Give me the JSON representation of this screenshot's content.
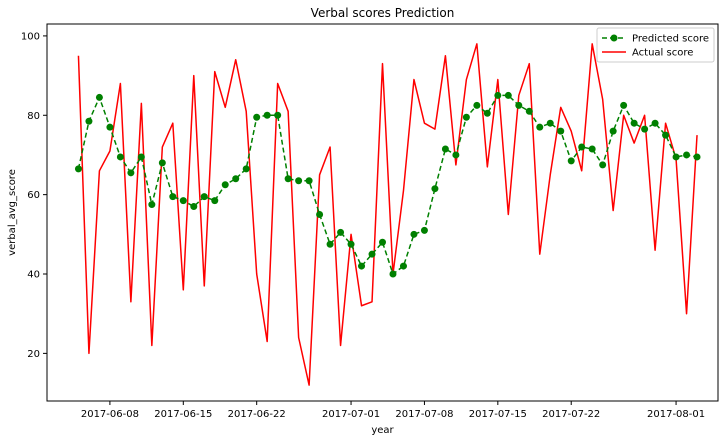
{
  "chart_data": {
    "type": "line",
    "title": "Verbal scores Prediction",
    "xlabel": "year",
    "ylabel": "verbal_avg_score",
    "x_start": "2017-06-05",
    "x": [
      "2017-06-05",
      "2017-06-06",
      "2017-06-07",
      "2017-06-08",
      "2017-06-09",
      "2017-06-10",
      "2017-06-11",
      "2017-06-12",
      "2017-06-13",
      "2017-06-14",
      "2017-06-15",
      "2017-06-16",
      "2017-06-17",
      "2017-06-18",
      "2017-06-19",
      "2017-06-20",
      "2017-06-21",
      "2017-06-22",
      "2017-06-23",
      "2017-06-24",
      "2017-06-25",
      "2017-06-26",
      "2017-06-27",
      "2017-06-28",
      "2017-06-29",
      "2017-06-30",
      "2017-07-01",
      "2017-07-02",
      "2017-07-03",
      "2017-07-04",
      "2017-07-05",
      "2017-07-06",
      "2017-07-07",
      "2017-07-08",
      "2017-07-09",
      "2017-07-10",
      "2017-07-11",
      "2017-07-12",
      "2017-07-13",
      "2017-07-14",
      "2017-07-15",
      "2017-07-16",
      "2017-07-17",
      "2017-07-18",
      "2017-07-19",
      "2017-07-20",
      "2017-07-21",
      "2017-07-22",
      "2017-07-23",
      "2017-07-24",
      "2017-07-25",
      "2017-07-26",
      "2017-07-27",
      "2017-07-28",
      "2017-07-29",
      "2017-07-30",
      "2017-07-31",
      "2017-08-01",
      "2017-08-02",
      "2017-08-03"
    ],
    "x_ticks": [
      "2017-06-08",
      "2017-06-15",
      "2017-06-22",
      "2017-07-01",
      "2017-07-08",
      "2017-07-15",
      "2017-07-22",
      "2017-08-01"
    ],
    "y_ticks": [
      20,
      40,
      60,
      80,
      100
    ],
    "xlim": [
      "2017-06-02",
      "2017-08-05"
    ],
    "ylim": [
      8,
      103
    ],
    "grid": false,
    "legend_position": "top-right",
    "series": [
      {
        "name": "Predicted score",
        "style": "dashed-with-markers",
        "color": "#008000",
        "values": [
          66.5,
          78.5,
          84.5,
          77,
          69.5,
          65.5,
          69.5,
          57.5,
          68,
          59.5,
          58.5,
          57,
          59.5,
          58.5,
          62.5,
          64,
          66.5,
          79.5,
          80,
          80,
          64,
          63.5,
          63.5,
          55,
          47.5,
          50.5,
          47.5,
          42,
          45,
          48,
          40,
          42,
          50,
          51,
          61.5,
          71.5,
          70,
          79.5,
          82.5,
          80.5,
          85,
          85,
          82.5,
          81,
          77,
          78,
          76,
          68.5,
          72,
          71.5,
          67.5,
          76,
          82.5,
          78,
          76.5,
          78,
          75,
          69.5,
          70,
          69.5
        ]
      },
      {
        "name": "Actual score",
        "style": "solid",
        "color": "#ff0000",
        "values": [
          95,
          20,
          66,
          71,
          88,
          33,
          83,
          22,
          72,
          78,
          36,
          90,
          37,
          91,
          82,
          94,
          81,
          40,
          23,
          88,
          81,
          24,
          12,
          65,
          72,
          22,
          50,
          32,
          33,
          93,
          40,
          61,
          89,
          78,
          76.5,
          95,
          67.5,
          89,
          98,
          67,
          89,
          55,
          85,
          93,
          45,
          65,
          82,
          76,
          66,
          98,
          84,
          56,
          80,
          73,
          80,
          46,
          78,
          69,
          30,
          75
        ]
      }
    ]
  }
}
